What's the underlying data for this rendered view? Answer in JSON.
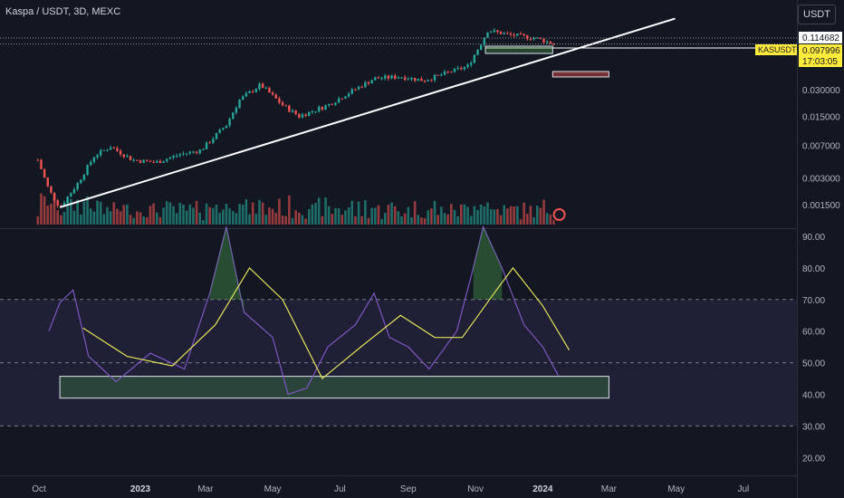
{
  "header": {
    "title": "Kaspa / USDT, 3D, MEXC",
    "currency_button": "USDT"
  },
  "price_badges": {
    "level_value": "0.114682",
    "symbol": "KASUSDT",
    "last_price": "0.097996",
    "countdown": "17:03:05"
  },
  "colors": {
    "background": "#131722",
    "bull": "#26a69a",
    "bear": "#ef5350",
    "rsi": "#7e57c2",
    "rsi_ma": "#e5e35a",
    "trendline": "#ffffff",
    "badge_yellow": "#ffeb3b"
  },
  "chart_data": [
    {
      "type": "candlestick",
      "log_scale": true,
      "price_ticks": [
        "0.030000",
        "0.015000",
        "0.007000",
        "0.003000",
        "0.001500"
      ],
      "price_tick_values": [
        0.03,
        0.015,
        0.007,
        0.003,
        0.0015
      ],
      "x_tick_labels": [
        "Oct",
        "2023",
        "Mar",
        "May",
        "Jul",
        "Sep",
        "Nov",
        "2024",
        "Mar",
        "May",
        "Jul"
      ],
      "x_tick_dates": [
        "2022-10-01",
        "2023-01-01",
        "2023-03-01",
        "2023-05-01",
        "2023-07-01",
        "2023-09-01",
        "2023-11-01",
        "2024-01-01",
        "2024-03-01",
        "2024-05-01",
        "2024-07-01"
      ],
      "close_path": [
        [
          "2022-09-30",
          0.0048
        ],
        [
          "2022-10-10",
          0.0022
        ],
        [
          "2022-10-20",
          0.0014
        ],
        [
          "2022-11-05",
          0.0026
        ],
        [
          "2022-11-20",
          0.0053
        ],
        [
          "2022-12-05",
          0.0068
        ],
        [
          "2022-12-25",
          0.0048
        ],
        [
          "2023-01-15",
          0.0045
        ],
        [
          "2023-02-05",
          0.0055
        ],
        [
          "2023-02-25",
          0.0062
        ],
        [
          "2023-03-20",
          0.012
        ],
        [
          "2023-04-01",
          0.023
        ],
        [
          "2023-04-20",
          0.034
        ],
        [
          "2023-05-10",
          0.02
        ],
        [
          "2023-05-25",
          0.015
        ],
        [
          "2023-06-20",
          0.02
        ],
        [
          "2023-07-10",
          0.028
        ],
        [
          "2023-08-01",
          0.04
        ],
        [
          "2023-08-25",
          0.042
        ],
        [
          "2023-09-15",
          0.038
        ],
        [
          "2023-10-10",
          0.048
        ],
        [
          "2023-10-25",
          0.055
        ],
        [
          "2023-11-05",
          0.095
        ],
        [
          "2023-11-12",
          0.14
        ],
        [
          "2023-12-01",
          0.125
        ],
        [
          "2023-12-25",
          0.115
        ],
        [
          "2024-01-12",
          0.098
        ]
      ],
      "trendline": [
        [
          "2022-10-20",
          0.0014
        ],
        [
          "2024-04-30",
          0.19
        ]
      ],
      "horizontal_level": 0.114682,
      "last_price": 0.097996
    },
    {
      "type": "line",
      "name": "RSI",
      "y_ticks": [
        90,
        80,
        70,
        60,
        50,
        40,
        30,
        20
      ],
      "y_labels": [
        "90.00",
        "80.00",
        "70.00",
        "60.00",
        "50.00",
        "40.00",
        "30.00",
        "20.00"
      ],
      "upper_band": 70,
      "middle_band": 50,
      "lower_band": 30,
      "series": [
        {
          "points": [
            [
              "2022-10-10",
              60
            ],
            [
              "2022-10-20",
              69
            ],
            [
              "2022-11-01",
              73
            ],
            [
              "2022-11-15",
              52
            ],
            [
              "2022-12-10",
              44
            ],
            [
              "2023-01-10",
              53
            ],
            [
              "2023-02-10",
              48
            ],
            [
              "2023-03-05",
              72
            ],
            [
              "2023-03-20",
              93
            ],
            [
              "2023-04-05",
              66
            ],
            [
              "2023-05-01",
              58
            ],
            [
              "2023-05-15",
              40
            ],
            [
              "2023-06-01",
              42
            ],
            [
              "2023-06-20",
              55
            ],
            [
              "2023-07-15",
              62
            ],
            [
              "2023-08-01",
              72
            ],
            [
              "2023-08-15",
              58
            ],
            [
              "2023-09-01",
              55
            ],
            [
              "2023-09-20",
              48
            ],
            [
              "2023-10-15",
              60
            ],
            [
              "2023-10-30",
              80
            ],
            [
              "2023-11-08",
              93
            ],
            [
              "2023-11-25",
              80
            ],
            [
              "2023-12-15",
              62
            ],
            [
              "2024-01-01",
              55
            ],
            [
              "2024-01-15",
              46
            ]
          ]
        },
        {
          "points": [
            [
              "2022-11-10",
              61
            ],
            [
              "2022-12-20",
              52
            ],
            [
              "2023-01-30",
              49
            ],
            [
              "2023-03-10",
              62
            ],
            [
              "2023-04-10",
              80
            ],
            [
              "2023-05-10",
              70
            ],
            [
              "2023-06-15",
              45
            ],
            [
              "2023-07-20",
              55
            ],
            [
              "2023-08-25",
              65
            ],
            [
              "2023-09-25",
              58
            ],
            [
              "2023-10-20",
              58
            ],
            [
              "2023-11-20",
              73
            ],
            [
              "2023-12-05",
              80
            ],
            [
              "2024-01-01",
              68
            ],
            [
              "2024-01-25",
              54
            ]
          ]
        }
      ],
      "support_zone": {
        "x_start": "2022-10-20",
        "x_end": "2024-03-01",
        "y_low": 38.8,
        "y_high": 45.7
      }
    }
  ]
}
